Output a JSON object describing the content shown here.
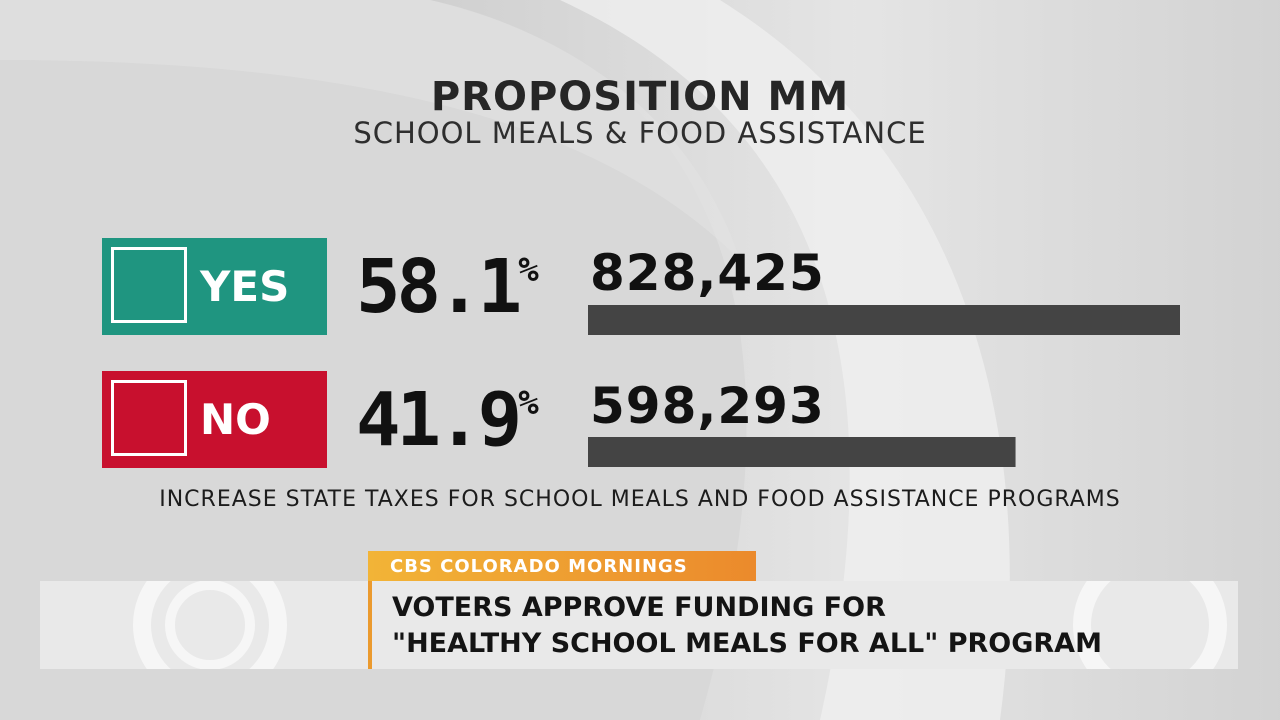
{
  "chart_data": {
    "type": "bar",
    "title": "PROPOSITION MM",
    "subtitle": "SCHOOL MEALS & FOOD ASSISTANCE",
    "categories": [
      "YES",
      "NO"
    ],
    "percentages": [
      "58.1",
      "41.9"
    ],
    "percent_sign": "%",
    "votes_label": [
      "828,425",
      "598,293"
    ],
    "values": [
      828425,
      598293
    ],
    "xlim": [
      0,
      828425
    ],
    "footnote": "INCREASE STATE TAXES FOR SCHOOL MEALS AND FOOD ASSISTANCE PROGRAMS",
    "colors": {
      "yes": "#1f9580",
      "no": "#c8102e",
      "bar": "#444444"
    }
  },
  "lower_third": {
    "show_name": "CBS COLORADO MORNINGS",
    "headline_line1": "VOTERS APPROVE FUNDING FOR",
    "headline_line2": "\"HEALTHY SCHOOL MEALS FOR ALL\" PROGRAM",
    "accent_color": "#eb9a2e"
  }
}
